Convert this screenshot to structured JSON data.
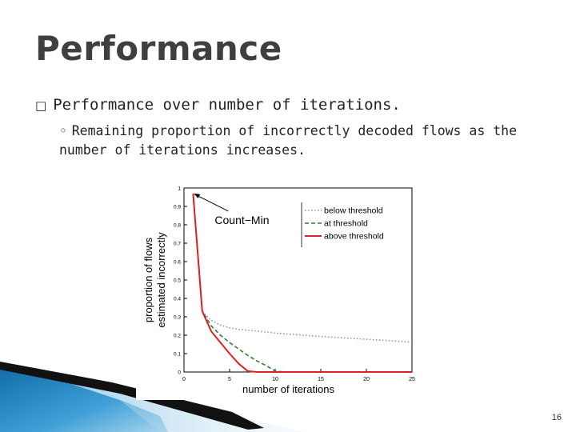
{
  "slide": {
    "title": "Performance",
    "bullet1": "Performance over number of iterations.",
    "bullet1_marker": "□",
    "bullet2_marker": "◦",
    "bullet2": "Remaining proportion of incorrectly decoded flows as the number of iterations increases.",
    "page_number": "16"
  },
  "chart_data": {
    "type": "line",
    "xlabel": "number of iterations",
    "ylabel_line1": "proportion of flows",
    "ylabel_line2": "estimated incorrectly",
    "xlim": [
      0,
      25
    ],
    "ylim": [
      0,
      1
    ],
    "xticks": [
      0,
      5,
      10,
      15,
      20,
      25
    ],
    "yticks": [
      0,
      0.1,
      0.2,
      0.3,
      0.4,
      0.5,
      0.6,
      0.7,
      0.8,
      0.9,
      1
    ],
    "annotation": {
      "text": "Count−Min",
      "x": 1,
      "y": 0.97
    },
    "legend_position": "top-right",
    "series": [
      {
        "name": "below threshold",
        "style": "dotted",
        "color": "#8a93c6",
        "x": [
          1,
          2,
          3,
          4,
          5,
          6,
          8,
          10,
          12,
          15,
          20,
          25
        ],
        "y": [
          0.97,
          0.33,
          0.28,
          0.255,
          0.24,
          0.232,
          0.222,
          0.212,
          0.204,
          0.193,
          0.178,
          0.162
        ]
      },
      {
        "name": "at threshold",
        "style": "dashed",
        "color": "#2e7d32",
        "x": [
          1,
          2,
          3,
          4,
          5,
          6,
          7,
          8,
          9,
          10,
          11,
          12,
          15,
          20,
          25
        ],
        "y": [
          0.97,
          0.33,
          0.25,
          0.2,
          0.16,
          0.125,
          0.09,
          0.06,
          0.035,
          0.005,
          0.0,
          0.0,
          0.0,
          0.0,
          0.0
        ]
      },
      {
        "name": "above threshold",
        "style": "solid",
        "color": "#e02020",
        "x": [
          1,
          2,
          3,
          4,
          5,
          6,
          7,
          8,
          9,
          10,
          12,
          15,
          20,
          25
        ],
        "y": [
          0.97,
          0.33,
          0.22,
          0.16,
          0.1,
          0.045,
          0.005,
          0.0,
          0.0,
          0.0,
          0.0,
          0.0,
          0.0,
          0.0
        ]
      }
    ]
  }
}
